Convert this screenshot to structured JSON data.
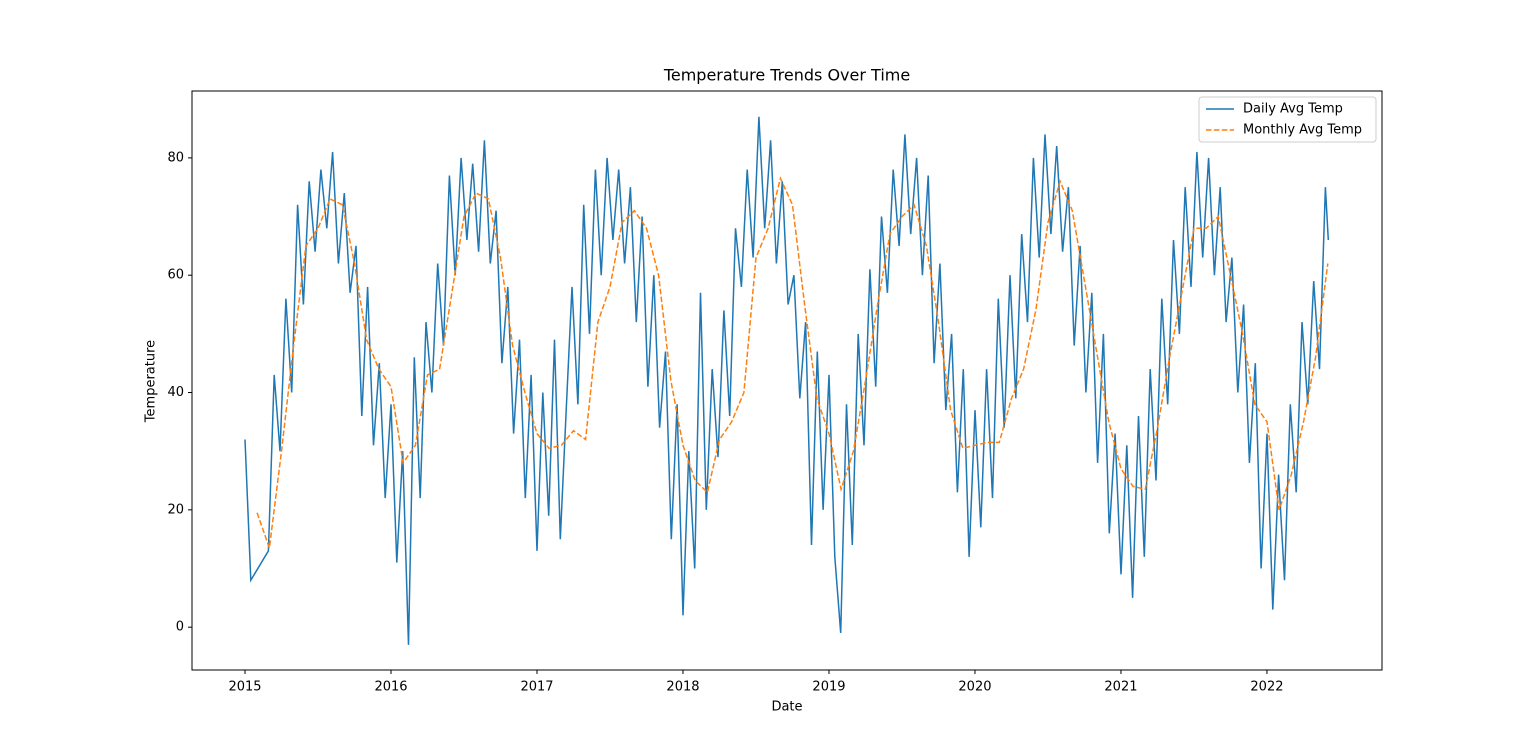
{
  "chart_data": {
    "type": "line",
    "title": "Temperature Trends Over Time",
    "x_label": "Date",
    "y_label": "Temperature",
    "xlim": [
      2014.637,
      2022.788
    ],
    "ylim": [
      -7.3,
      91.4
    ],
    "xticks": [
      2015,
      2016,
      2017,
      2018,
      2019,
      2020,
      2021,
      2022
    ],
    "yticks": [
      0,
      20,
      40,
      60,
      80
    ],
    "legend": "upper right",
    "grid": false,
    "series": [
      {
        "name": "Daily Avg Temp",
        "color": "#1f77b4",
        "dash": false,
        "x": [
          2015,
          2015.04,
          2015.16,
          2015.2,
          2015.24,
          2015.28,
          2015.32,
          2015.36,
          2015.4,
          2015.44,
          2015.48,
          2015.52,
          2015.56,
          2015.6,
          2015.64,
          2015.68,
          2015.72,
          2015.76,
          2015.8,
          2015.84,
          2015.88,
          2015.92,
          2015.96,
          2016,
          2016.04,
          2016.08,
          2016.12,
          2016.16,
          2016.2,
          2016.24,
          2016.28,
          2016.32,
          2016.36,
          2016.4,
          2016.44,
          2016.48,
          2016.52,
          2016.56,
          2016.6,
          2016.64,
          2016.68,
          2016.72,
          2016.76,
          2016.8,
          2016.84,
          2016.88,
          2016.92,
          2016.96,
          2017,
          2017.04,
          2017.08,
          2017.12,
          2017.16,
          2017.2,
          2017.24,
          2017.28,
          2017.32,
          2017.36,
          2017.4,
          2017.44,
          2017.48,
          2017.52,
          2017.56,
          2017.6,
          2017.64,
          2017.68,
          2017.72,
          2017.76,
          2017.8,
          2017.84,
          2017.88,
          2017.92,
          2017.96,
          2018,
          2018.04,
          2018.08,
          2018.12,
          2018.16,
          2018.2,
          2018.24,
          2018.28,
          2018.32,
          2018.36,
          2018.4,
          2018.44,
          2018.48,
          2018.52,
          2018.56,
          2018.6,
          2018.64,
          2018.68,
          2018.72,
          2018.76,
          2018.8,
          2018.84,
          2018.88,
          2018.92,
          2018.96,
          2019,
          2019.04,
          2019.08,
          2019.12,
          2019.16,
          2019.2,
          2019.24,
          2019.28,
          2019.32,
          2019.36,
          2019.4,
          2019.44,
          2019.48,
          2019.52,
          2019.56,
          2019.6,
          2019.64,
          2019.68,
          2019.72,
          2019.76,
          2019.8,
          2019.84,
          2019.88,
          2019.92,
          2019.96,
          2020,
          2020.04,
          2020.08,
          2020.12,
          2020.16,
          2020.2,
          2020.24,
          2020.28,
          2020.32,
          2020.36,
          2020.4,
          2020.44,
          2020.48,
          2020.52,
          2020.56,
          2020.6,
          2020.64,
          2020.68,
          2020.72,
          2020.76,
          2020.8,
          2020.84,
          2020.88,
          2020.92,
          2020.96,
          2021,
          2021.04,
          2021.08,
          2021.12,
          2021.16,
          2021.2,
          2021.24,
          2021.28,
          2021.32,
          2021.36,
          2021.4,
          2021.44,
          2021.48,
          2021.52,
          2021.56,
          2021.6,
          2021.64,
          2021.68,
          2021.72,
          2021.76,
          2021.8,
          2021.84,
          2021.88,
          2021.92,
          2021.96,
          2022,
          2022.04,
          2022.08,
          2022.12,
          2022.16,
          2022.2,
          2022.24,
          2022.28,
          2022.32,
          2022.36,
          2022.4,
          2022.42
        ],
        "values": [
          32,
          8,
          13,
          43,
          30,
          56,
          40,
          72,
          55,
          76,
          64,
          78,
          68,
          81,
          62,
          74,
          57,
          65,
          36,
          58,
          31,
          45,
          22,
          38,
          11,
          30,
          -3,
          46,
          22,
          52,
          40,
          62,
          48,
          77,
          60,
          80,
          66,
          79,
          64,
          83,
          62,
          71,
          45,
          58,
          33,
          49,
          22,
          43,
          13,
          40,
          19,
          49,
          15,
          37,
          58,
          38,
          72,
          50,
          78,
          60,
          80,
          66,
          78,
          62,
          75,
          52,
          70,
          41,
          60,
          34,
          47,
          15,
          38,
          2,
          30,
          10,
          57,
          20,
          44,
          29,
          54,
          36,
          68,
          58,
          78,
          63,
          87,
          68,
          83,
          62,
          76,
          55,
          60,
          39,
          52,
          14,
          47,
          20,
          43,
          12,
          -1,
          38,
          14,
          50,
          31,
          61,
          41,
          70,
          57,
          78,
          65,
          84,
          67,
          80,
          60,
          77,
          45,
          62,
          37,
          50,
          23,
          44,
          12,
          37,
          17,
          44,
          22,
          56,
          34,
          60,
          39,
          67,
          52,
          80,
          63,
          84,
          67,
          82,
          64,
          75,
          48,
          65,
          40,
          57,
          28,
          50,
          16,
          33,
          9,
          31,
          5,
          36,
          12,
          44,
          25,
          56,
          38,
          66,
          50,
          75,
          58,
          81,
          63,
          80,
          60,
          75,
          52,
          63,
          40,
          55,
          28,
          45,
          10,
          33,
          3,
          26,
          8,
          38,
          23,
          52,
          38,
          59,
          44,
          75,
          66
        ]
      },
      {
        "name": "Monthly Avg Temp",
        "color": "#ff7f0e",
        "dash": true,
        "x": [
          2015.083,
          2015.167,
          2015.25,
          2015.333,
          2015.417,
          2015.5,
          2015.583,
          2015.667,
          2015.75,
          2015.833,
          2015.917,
          2016,
          2016.083,
          2016.167,
          2016.25,
          2016.333,
          2016.417,
          2016.5,
          2016.583,
          2016.667,
          2016.75,
          2016.833,
          2016.917,
          2017,
          2017.083,
          2017.167,
          2017.25,
          2017.333,
          2017.417,
          2017.5,
          2017.583,
          2017.667,
          2017.75,
          2017.833,
          2017.917,
          2018,
          2018.083,
          2018.167,
          2018.25,
          2018.333,
          2018.417,
          2018.5,
          2018.583,
          2018.667,
          2018.75,
          2018.833,
          2018.917,
          2019,
          2019.083,
          2019.167,
          2019.25,
          2019.333,
          2019.417,
          2019.5,
          2019.583,
          2019.667,
          2019.75,
          2019.833,
          2019.917,
          2020,
          2020.083,
          2020.167,
          2020.25,
          2020.333,
          2020.417,
          2020.5,
          2020.583,
          2020.667,
          2020.75,
          2020.833,
          2020.917,
          2021,
          2021.083,
          2021.167,
          2021.25,
          2021.333,
          2021.417,
          2021.5,
          2021.583,
          2021.667,
          2021.75,
          2021.833,
          2021.917,
          2022,
          2022.083,
          2022.167,
          2022.25,
          2022.333,
          2022.417
        ],
        "values": [
          19.5,
          13.5,
          30,
          48,
          65,
          68,
          73,
          72,
          62,
          49,
          44,
          41,
          28,
          31,
          43,
          44,
          57,
          70,
          74,
          73,
          63,
          48,
          40,
          33,
          30.5,
          31,
          33.5,
          32,
          52,
          58,
          69,
          71,
          68,
          60,
          42,
          31,
          25,
          23,
          32,
          35,
          40,
          63,
          68,
          76.5,
          72,
          55,
          39,
          33,
          23.5,
          30,
          42,
          55,
          67,
          70,
          72,
          65,
          52,
          37,
          30.5,
          31,
          31.5,
          31.5,
          39,
          44,
          54,
          69,
          76,
          71,
          59,
          47,
          35,
          27,
          24,
          23.5,
          34,
          46,
          57,
          68,
          68,
          70,
          60,
          50,
          38,
          35,
          20,
          26,
          35,
          46,
          62
        ]
      }
    ]
  }
}
